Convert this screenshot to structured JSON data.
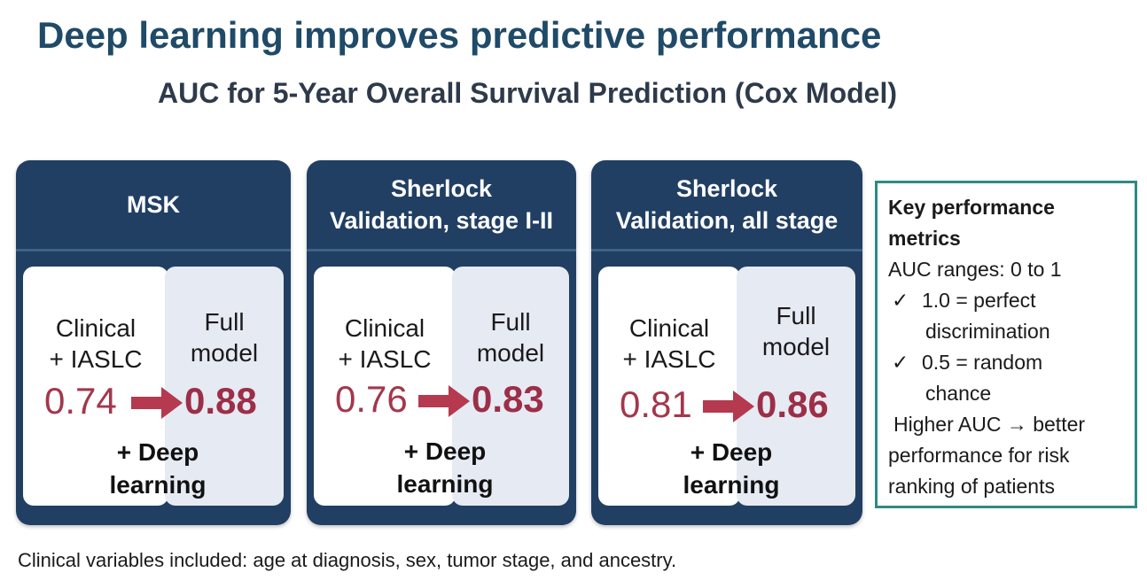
{
  "title": "Deep learning improves predictive performance",
  "subtitle": "AUC for 5-Year Overall Survival Prediction (Cox Model)",
  "labels": {
    "baseline_line1": "Clinical",
    "baseline_line2": "+ IASLC",
    "full_line1": "Full",
    "full_line2": "model",
    "dl_line1": "+ Deep",
    "dl_line2": "learning"
  },
  "cohorts": [
    {
      "header_line1": "MSK",
      "header_line2": "",
      "baseline_auc": "0.74",
      "full_auc": "0.88"
    },
    {
      "header_line1": "Sherlock",
      "header_line2": "Validation, stage I-II",
      "baseline_auc": "0.76",
      "full_auc": "0.83"
    },
    {
      "header_line1": "Sherlock",
      "header_line2": "Validation, all stage",
      "baseline_auc": "0.81",
      "full_auc": "0.86"
    }
  ],
  "metrics": {
    "heading_line1": "Key performance",
    "heading_line2": "metrics",
    "range": "AUC ranges: 0 to 1",
    "check_mark": "✓",
    "perfect_line1": "1.0 = perfect",
    "perfect_line2": "discrimination",
    "random_line1": "0.5 = random",
    "random_line2": "chance",
    "note_line1": "Higher AUC → better",
    "note_line2": "performance for risk",
    "note_line3": "ranking of patients"
  },
  "footnote": "Clinical variables included: age at diagnosis, sex, tumor stage, and ancestry.",
  "colors": {
    "title": "#1f4a68",
    "card": "#213f63",
    "auc": "#9c2f47",
    "arrow": "#b5394f",
    "metrics_border": "#2e8a85"
  }
}
